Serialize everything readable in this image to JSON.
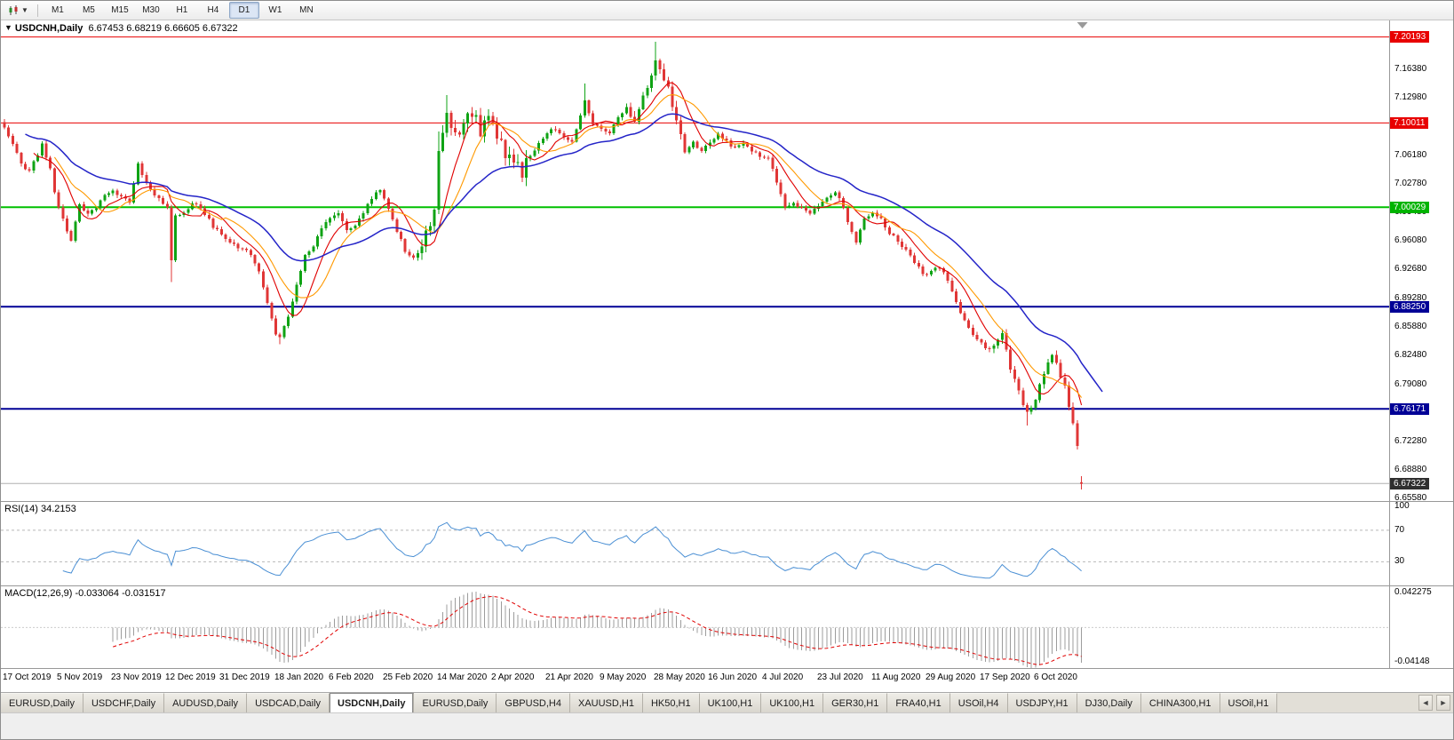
{
  "toolbar": {
    "chart_type_icon": "candlestick-chart-icon",
    "timeframes": [
      "M1",
      "M5",
      "M15",
      "M30",
      "H1",
      "H4",
      "D1",
      "W1",
      "MN"
    ],
    "active_timeframe": "D1"
  },
  "chart": {
    "symbol": "USDCNH,Daily",
    "ohlc_text": "6.67453 6.68219 6.66605 6.67322",
    "open": "6.67453",
    "high": "6.68219",
    "low": "6.66605",
    "close": "6.67322"
  },
  "indicators": {
    "rsi_label": "RSI(14) 34.2153",
    "macd_label": "MACD(12,26,9) -0.033064 -0.031517",
    "rsi_levels": [
      "100",
      "70",
      "30"
    ],
    "macd_axis_top": "0.042275",
    "macd_axis_bottom": "-0.04148"
  },
  "price_axis": {
    "labels": [
      "7.16380",
      "7.12980",
      "7.09580",
      "7.06180",
      "7.02780",
      "6.99480",
      "6.96080",
      "6.92680",
      "6.89280",
      "6.85880",
      "6.82480",
      "6.79080",
      "6.75680",
      "6.72280",
      "6.68880",
      "6.65580"
    ],
    "badges": [
      {
        "text": "7.20193",
        "color": "#e80000"
      },
      {
        "text": "7.10011",
        "color": "#e80000"
      },
      {
        "text": "7.00029",
        "color": "#00b400"
      },
      {
        "text": "6.88250",
        "color": "#000096"
      },
      {
        "text": "6.76171",
        "color": "#000096"
      },
      {
        "text": "6.67322",
        "color": "#2f2f2f"
      }
    ]
  },
  "time_axis": {
    "labels": [
      "17 Oct 2019",
      "5 Nov 2019",
      "23 Nov 2019",
      "12 Dec 2019",
      "31 Dec 2019",
      "18 Jan 2020",
      "6 Feb 2020",
      "25 Feb 2020",
      "14 Mar 2020",
      "2 Apr 2020",
      "21 Apr 2020",
      "9 May 2020",
      "28 May 2020",
      "16 Jun 2020",
      "4 Jul 2020",
      "23 Jul 2020",
      "11 Aug 2020",
      "29 Aug 2020",
      "17 Sep 2020",
      "6 Oct 2020"
    ],
    "bars_per_label": 13
  },
  "chart_data": {
    "type": "candlestick",
    "symbol": "USDCNH",
    "timeframe": "Daily",
    "bar_count": 259,
    "price_min": 6.6525,
    "price_max": 7.2215,
    "last_bar": {
      "open": 6.67453,
      "high": 6.68219,
      "low": 6.66605,
      "close": 6.67322
    },
    "current_price": 6.67322,
    "close_anchors": [
      [
        0,
        7.095
      ],
      [
        2,
        7.075
      ],
      [
        4,
        7.05
      ],
      [
        6,
        7.045
      ],
      [
        8,
        7.06
      ],
      [
        9,
        7.075
      ],
      [
        11,
        7.045
      ],
      [
        12,
        7.02
      ],
      [
        14,
        6.985
      ],
      [
        16,
        6.962
      ],
      [
        18,
        7.005
      ],
      [
        20,
        6.992
      ],
      [
        22,
        7.0
      ],
      [
        24,
        7.015
      ],
      [
        26,
        7.02
      ],
      [
        28,
        7.012
      ],
      [
        30,
        7.005
      ],
      [
        32,
        7.05
      ],
      [
        34,
        7.03
      ],
      [
        36,
        7.015
      ],
      [
        38,
        7.005
      ],
      [
        39,
        7.0
      ],
      [
        40,
        6.94
      ],
      [
        41,
        6.99
      ],
      [
        43,
        6.995
      ],
      [
        45,
        7.005
      ],
      [
        47,
        7.0
      ],
      [
        49,
        6.985
      ],
      [
        51,
        6.972
      ],
      [
        53,
        6.962
      ],
      [
        55,
        6.955
      ],
      [
        57,
        6.95
      ],
      [
        59,
        6.945
      ],
      [
        61,
        6.925
      ],
      [
        63,
        6.885
      ],
      [
        65,
        6.852
      ],
      [
        66,
        6.845
      ],
      [
        68,
        6.87
      ],
      [
        70,
        6.91
      ],
      [
        72,
        6.942
      ],
      [
        74,
        6.955
      ],
      [
        76,
        6.975
      ],
      [
        78,
        6.988
      ],
      [
        80,
        6.995
      ],
      [
        82,
        6.975
      ],
      [
        84,
        6.978
      ],
      [
        86,
        6.995
      ],
      [
        88,
        7.012
      ],
      [
        90,
        7.02
      ],
      [
        92,
        7.0
      ],
      [
        94,
        6.972
      ],
      [
        96,
        6.95
      ],
      [
        98,
        6.94
      ],
      [
        100,
        6.955
      ],
      [
        102,
        6.975
      ],
      [
        103,
        6.998
      ],
      [
        104,
        7.06
      ],
      [
        105,
        7.095
      ],
      [
        106,
        7.11
      ],
      [
        108,
        7.085
      ],
      [
        110,
        7.1
      ],
      [
        112,
        7.115
      ],
      [
        114,
        7.09
      ],
      [
        116,
        7.108
      ],
      [
        118,
        7.085
      ],
      [
        120,
        7.062
      ],
      [
        122,
        7.05
      ],
      [
        124,
        7.042
      ],
      [
        126,
        7.06
      ],
      [
        128,
        7.078
      ],
      [
        130,
        7.088
      ],
      [
        132,
        7.094
      ],
      [
        134,
        7.085
      ],
      [
        136,
        7.076
      ],
      [
        138,
        7.108
      ],
      [
        139,
        7.128
      ],
      [
        141,
        7.1
      ],
      [
        143,
        7.094
      ],
      [
        145,
        7.09
      ],
      [
        147,
        7.108
      ],
      [
        149,
        7.118
      ],
      [
        151,
        7.1
      ],
      [
        153,
        7.128
      ],
      [
        155,
        7.158
      ],
      [
        156,
        7.175
      ],
      [
        157,
        7.163
      ],
      [
        159,
        7.14
      ],
      [
        161,
        7.1
      ],
      [
        163,
        7.065
      ],
      [
        165,
        7.078
      ],
      [
        167,
        7.068
      ],
      [
        169,
        7.075
      ],
      [
        171,
        7.088
      ],
      [
        173,
        7.078
      ],
      [
        175,
        7.07
      ],
      [
        177,
        7.074
      ],
      [
        179,
        7.068
      ],
      [
        181,
        7.062
      ],
      [
        183,
        7.058
      ],
      [
        185,
        7.03
      ],
      [
        187,
        7.0
      ],
      [
        189,
        7.005
      ],
      [
        191,
        7.0
      ],
      [
        193,
        6.995
      ],
      [
        195,
        7.004
      ],
      [
        197,
        7.01
      ],
      [
        199,
        7.018
      ],
      [
        201,
        7.0
      ],
      [
        203,
        6.97
      ],
      [
        204,
        6.958
      ],
      [
        206,
        6.985
      ],
      [
        208,
        6.995
      ],
      [
        210,
        6.985
      ],
      [
        212,
        6.97
      ],
      [
        214,
        6.96
      ],
      [
        216,
        6.95
      ],
      [
        218,
        6.936
      ],
      [
        220,
        6.92
      ],
      [
        222,
        6.925
      ],
      [
        224,
        6.93
      ],
      [
        226,
        6.915
      ],
      [
        228,
        6.888
      ],
      [
        230,
        6.865
      ],
      [
        232,
        6.85
      ],
      [
        234,
        6.84
      ],
      [
        236,
        6.83
      ],
      [
        238,
        6.842
      ],
      [
        239,
        6.85
      ],
      [
        241,
        6.81
      ],
      [
        243,
        6.78
      ],
      [
        245,
        6.756
      ],
      [
        247,
        6.77
      ],
      [
        248,
        6.79
      ],
      [
        250,
        6.815
      ],
      [
        251,
        6.825
      ],
      [
        253,
        6.8
      ],
      [
        254,
        6.786
      ],
      [
        255,
        6.766
      ],
      [
        256,
        6.742
      ],
      [
        257,
        6.716
      ],
      [
        258,
        6.6732
      ]
    ],
    "noise_base": 0.003,
    "noise_zones": [
      {
        "from": 100,
        "to": 126,
        "amp": 0.01
      },
      {
        "from": 149,
        "to": 162,
        "amp": 0.007
      },
      {
        "from": 236,
        "to": 258,
        "amp": 0.005
      }
    ],
    "wick_overrides": [
      {
        "i": 40,
        "l": 6.912
      },
      {
        "i": 66,
        "l": 6.838
      },
      {
        "i": 104,
        "h": 7.09
      },
      {
        "i": 106,
        "h": 7.133
      },
      {
        "i": 139,
        "h": 7.147
      },
      {
        "i": 156,
        "h": 7.196
      },
      {
        "i": 245,
        "l": 6.742
      }
    ],
    "horizontal_lines": [
      {
        "price": 7.20193,
        "color": "#e80000",
        "width": 1
      },
      {
        "price": 7.10011,
        "color": "#e80000",
        "width": 1
      },
      {
        "price": 7.00029,
        "color": "#00c000",
        "width": 2
      },
      {
        "price": 6.8825,
        "color": "#000096",
        "width": 2
      },
      {
        "price": 6.76171,
        "color": "#000096",
        "width": 2
      }
    ],
    "moving_averages": [
      {
        "period": 8,
        "method": "sma",
        "color": "#e00000",
        "width": 1.1,
        "extend": 0
      },
      {
        "period": 13,
        "method": "sma",
        "color": "#ff9900",
        "width": 1.1,
        "extend": 0
      },
      {
        "period": 34,
        "method": "ema",
        "color": "#2424c8",
        "width": 1.5,
        "extend": 5
      }
    ],
    "rsi": {
      "period": 14,
      "current": 34.2153,
      "color": "#4a8fd4",
      "levels": [
        70,
        30
      ]
    },
    "macd": {
      "fast": 12,
      "slow": 26,
      "signal": 9,
      "macd_current": -0.033064,
      "signal_current": -0.031517,
      "range": [
        -0.04148,
        0.042275
      ],
      "hist_color": "#9c9c9c",
      "signal_color": "#e00000"
    },
    "colors": {
      "up": "#0fa314",
      "down": "#e03636",
      "bg": "#ffffff",
      "current_price_line": "#b0b0b0"
    }
  },
  "tabs": {
    "items": [
      "EURUSD,Daily",
      "USDCHF,Daily",
      "AUDUSD,Daily",
      "USDCAD,Daily",
      "USDCNH,Daily",
      "EURUSD,Daily",
      "GBPUSD,H4",
      "XAUUSD,H1",
      "HK50,H1",
      "UK100,H1",
      "UK100,H1",
      "GER30,H1",
      "FRA40,H1",
      "USOil,H4",
      "USDJPY,H1",
      "DJ30,Daily",
      "CHINA300,H1",
      "USOil,H1"
    ],
    "active_index": 4,
    "scroll_left": "◄",
    "scroll_right": "►"
  }
}
